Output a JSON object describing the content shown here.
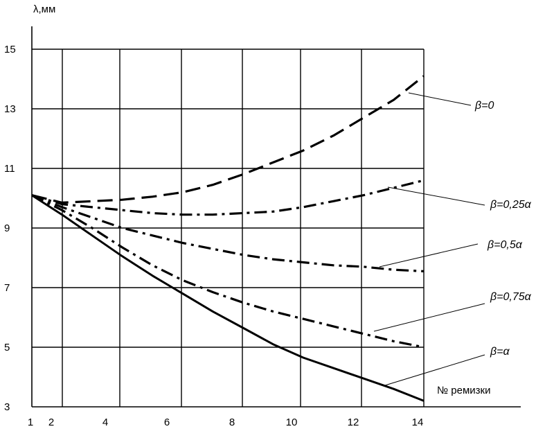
{
  "chart_data": {
    "type": "line",
    "ylabel": "λ,мм",
    "xlabel": "№ ремизки",
    "x_ticks": [
      1,
      2,
      4,
      6,
      8,
      10,
      12,
      14
    ],
    "y_ticks": [
      3,
      5,
      7,
      9,
      11,
      13,
      15
    ],
    "xlim": [
      1,
      14
    ],
    "ylim": [
      3,
      15
    ],
    "grid": true,
    "series": [
      {
        "name": "β=0",
        "style": "long-dash",
        "x": [
          1,
          2,
          3,
          4,
          5,
          6,
          7,
          8,
          9,
          10,
          11,
          12,
          13,
          14
        ],
        "y": [
          10.1,
          9.85,
          9.9,
          9.95,
          10.05,
          10.2,
          10.45,
          10.8,
          11.2,
          11.6,
          12.1,
          12.7,
          13.3,
          14.1
        ]
      },
      {
        "name": "β=0,25α",
        "style": "dash-dot",
        "x": [
          1,
          2,
          3,
          4,
          5,
          6,
          7,
          8,
          9,
          10,
          11,
          12,
          13,
          14
        ],
        "y": [
          10.1,
          9.8,
          9.7,
          9.6,
          9.5,
          9.45,
          9.45,
          9.5,
          9.55,
          9.7,
          9.9,
          10.1,
          10.35,
          10.6
        ]
      },
      {
        "name": "β=0,5α",
        "style": "dash-dot",
        "x": [
          1,
          2,
          3,
          4,
          5,
          6,
          7,
          8,
          9,
          10,
          11,
          12,
          13,
          14
        ],
        "y": [
          10.1,
          9.7,
          9.35,
          9.0,
          8.75,
          8.5,
          8.3,
          8.1,
          7.95,
          7.85,
          7.75,
          7.7,
          7.6,
          7.55
        ]
      },
      {
        "name": "β=0,75α",
        "style": "dash-dot",
        "x": [
          1,
          2,
          3,
          4,
          5,
          6,
          7,
          8,
          9,
          10,
          11,
          12,
          13,
          14
        ],
        "y": [
          10.1,
          9.6,
          9.0,
          8.35,
          7.75,
          7.25,
          6.85,
          6.5,
          6.2,
          5.95,
          5.7,
          5.45,
          5.2,
          5.0
        ]
      },
      {
        "name": "β=α",
        "style": "solid",
        "x": [
          1,
          2,
          3,
          4,
          5,
          6,
          7,
          8,
          9,
          10,
          11,
          12,
          13,
          14
        ],
        "y": [
          10.1,
          9.45,
          8.75,
          8.05,
          7.4,
          6.8,
          6.2,
          5.65,
          5.1,
          4.65,
          4.3,
          3.95,
          3.6,
          3.2
        ]
      }
    ]
  }
}
